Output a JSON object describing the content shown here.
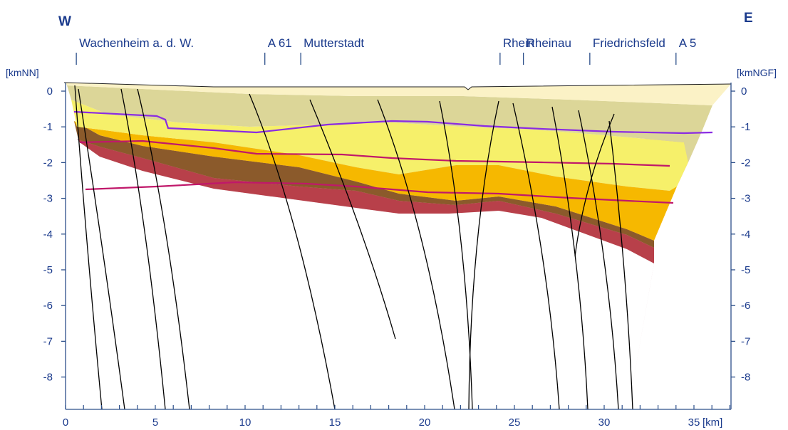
{
  "directions": {
    "west": "W",
    "east": "E"
  },
  "locations": [
    {
      "label": "Wachenheim a. d. W.",
      "km": 0.6
    },
    {
      "label": "A 61",
      "km": 11.1
    },
    {
      "label": "Mutterstadt",
      "km": 13.1
    },
    {
      "label": "Rhein",
      "km": 24.2
    },
    {
      "label": "Rheinau",
      "km": 25.5
    },
    {
      "label": "Friedrichsfeld",
      "km": 29.2
    },
    {
      "label": "A 5",
      "km": 34
    }
  ],
  "axes": {
    "left_unit": "[kmNN]",
    "right_unit": "[kmNGF]",
    "x_unit": "[km]",
    "x_ticks": [
      "0",
      "5",
      "10",
      "15",
      "20",
      "25",
      "30",
      "35"
    ],
    "y_ticks": [
      "0",
      "-1",
      "-2",
      "-3",
      "-4",
      "-5",
      "-6",
      "-7",
      "-8"
    ],
    "x_range": [
      0,
      37
    ],
    "y_range": [
      0.25,
      -8.75
    ]
  },
  "colors": {
    "frame": "#2c4f8a",
    "text": "#1a3a8c",
    "purple_horizon": "#8a2be2",
    "magenta_horizon": "#c0186a",
    "fault": "#000000"
  }
}
